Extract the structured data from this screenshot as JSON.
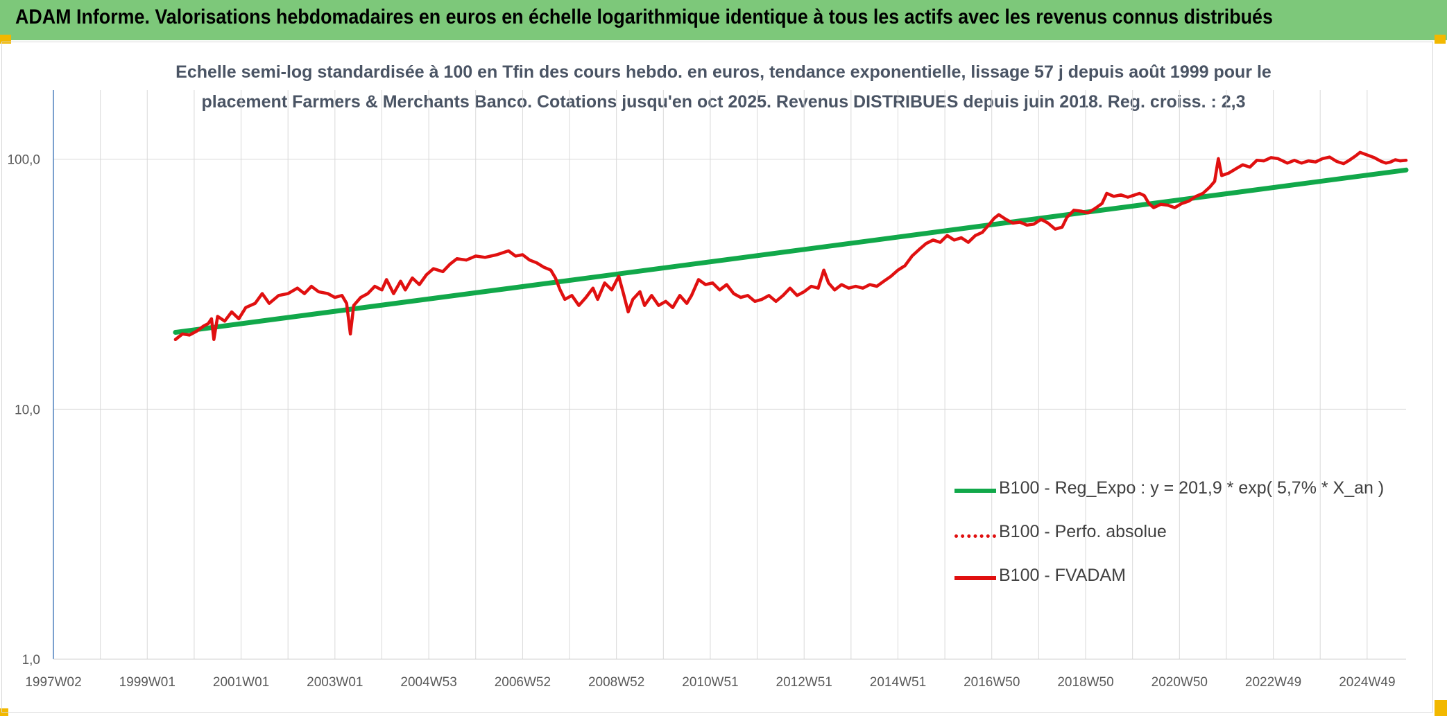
{
  "header": {
    "title": "ADAM Informe. Valorisations hebdomadaires en euros en échelle logarithmique identique à tous les actifs avec les revenus connus distribués"
  },
  "chart_data": {
    "type": "line",
    "title_lines": [
      "Echelle semi-log standardisée à 100 en Tfin des cours hebdo. en euros, tendance exponentielle, lissage 57 j depuis août 1999 pour le",
      "placement Farmers & Merchants Banco. Cotations jusqu'en oct 2025. Revenus DISTRIBUES depuis juin 2018. Reg. croiss. : 2,3"
    ],
    "y_scale": "log",
    "y_range": [
      1,
      189
    ],
    "y_ticks": [
      {
        "value": 1,
        "label": "1,0"
      },
      {
        "value": 10,
        "label": "10,0"
      },
      {
        "value": 100,
        "label": "100,0"
      }
    ],
    "x_range": [
      1997.0,
      2025.83
    ],
    "x_ticks": [
      {
        "value": 1997.0,
        "label": "1997W02"
      },
      {
        "value": 1999.0,
        "label": "1999W01"
      },
      {
        "value": 2001.0,
        "label": "2001W01"
      },
      {
        "value": 2003.0,
        "label": "2003W01"
      },
      {
        "value": 2005.0,
        "label": "2004W53"
      },
      {
        "value": 2007.0,
        "label": "2006W52"
      },
      {
        "value": 2009.0,
        "label": "2008W52"
      },
      {
        "value": 2011.0,
        "label": "2010W51"
      },
      {
        "value": 2013.0,
        "label": "2012W51"
      },
      {
        "value": 2015.0,
        "label": "2014W51"
      },
      {
        "value": 2017.0,
        "label": "2016W50"
      },
      {
        "value": 2019.0,
        "label": "2018W50"
      },
      {
        "value": 2021.0,
        "label": "2020W50"
      },
      {
        "value": 2023.0,
        "label": "2022W49"
      },
      {
        "value": 2025.0,
        "label": "2024W49"
      }
    ],
    "grid": true,
    "legend_position": "bottom-right",
    "series": [
      {
        "name": "B100 - Reg_Expo : y = 201,9 * exp( 5,7% *  X_an )",
        "color": "#11a84a",
        "style": "solid",
        "points": [
          [
            1999.6,
            20.3
          ],
          [
            2025.83,
            90.5
          ]
        ]
      },
      {
        "name": "B100 - Perfo. absolue",
        "color": "#e01010",
        "style": "dotted",
        "points": []
      },
      {
        "name": "B100 - FVADAM",
        "color": "#e01010",
        "style": "solid",
        "points": [
          [
            1999.6,
            19.0
          ],
          [
            1999.75,
            20.0
          ],
          [
            1999.9,
            19.8
          ],
          [
            2000.05,
            20.5
          ],
          [
            2000.2,
            21.5
          ],
          [
            2000.3,
            22.0
          ],
          [
            2000.37,
            23.0
          ],
          [
            2000.42,
            19.0
          ],
          [
            2000.5,
            23.5
          ],
          [
            2000.65,
            22.5
          ],
          [
            2000.8,
            24.5
          ],
          [
            2000.95,
            23.0
          ],
          [
            2001.1,
            25.5
          ],
          [
            2001.3,
            26.5
          ],
          [
            2001.45,
            29.0
          ],
          [
            2001.6,
            26.5
          ],
          [
            2001.8,
            28.5
          ],
          [
            2002.0,
            29.0
          ],
          [
            2002.2,
            30.5
          ],
          [
            2002.35,
            29.0
          ],
          [
            2002.5,
            31.0
          ],
          [
            2002.65,
            29.5
          ],
          [
            2002.85,
            29.0
          ],
          [
            2003.0,
            28.0
          ],
          [
            2003.15,
            28.5
          ],
          [
            2003.25,
            26.5
          ],
          [
            2003.33,
            20.0
          ],
          [
            2003.4,
            26.0
          ],
          [
            2003.55,
            28.0
          ],
          [
            2003.7,
            29.0
          ],
          [
            2003.85,
            31.0
          ],
          [
            2004.0,
            30.0
          ],
          [
            2004.1,
            33.0
          ],
          [
            2004.25,
            29.0
          ],
          [
            2004.4,
            32.5
          ],
          [
            2004.5,
            30.0
          ],
          [
            2004.65,
            33.5
          ],
          [
            2004.8,
            31.5
          ],
          [
            2004.95,
            34.5
          ],
          [
            2005.1,
            36.5
          ],
          [
            2005.3,
            35.5
          ],
          [
            2005.45,
            38.0
          ],
          [
            2005.6,
            40.0
          ],
          [
            2005.8,
            39.5
          ],
          [
            2006.0,
            41.0
          ],
          [
            2006.2,
            40.5
          ],
          [
            2006.45,
            41.5
          ],
          [
            2006.7,
            43.0
          ],
          [
            2006.85,
            41.0
          ],
          [
            2007.0,
            41.5
          ],
          [
            2007.15,
            39.5
          ],
          [
            2007.3,
            38.5
          ],
          [
            2007.45,
            37.0
          ],
          [
            2007.6,
            36.0
          ],
          [
            2007.7,
            33.5
          ],
          [
            2007.8,
            30.0
          ],
          [
            2007.9,
            27.5
          ],
          [
            2008.05,
            28.5
          ],
          [
            2008.2,
            26.0
          ],
          [
            2008.35,
            28.0
          ],
          [
            2008.5,
            30.5
          ],
          [
            2008.6,
            27.5
          ],
          [
            2008.75,
            32.0
          ],
          [
            2008.9,
            30.0
          ],
          [
            2009.05,
            34.0
          ],
          [
            2009.15,
            29.0
          ],
          [
            2009.25,
            24.5
          ],
          [
            2009.35,
            27.5
          ],
          [
            2009.5,
            29.5
          ],
          [
            2009.6,
            26.0
          ],
          [
            2009.75,
            28.5
          ],
          [
            2009.9,
            26.0
          ],
          [
            2010.05,
            27.0
          ],
          [
            2010.2,
            25.5
          ],
          [
            2010.35,
            28.5
          ],
          [
            2010.5,
            26.5
          ],
          [
            2010.6,
            28.5
          ],
          [
            2010.75,
            33.0
          ],
          [
            2010.9,
            31.5
          ],
          [
            2011.05,
            32.0
          ],
          [
            2011.2,
            30.0
          ],
          [
            2011.35,
            31.5
          ],
          [
            2011.5,
            29.0
          ],
          [
            2011.65,
            28.0
          ],
          [
            2011.8,
            28.5
          ],
          [
            2011.95,
            27.0
          ],
          [
            2012.1,
            27.5
          ],
          [
            2012.25,
            28.5
          ],
          [
            2012.4,
            27.0
          ],
          [
            2012.55,
            28.5
          ],
          [
            2012.7,
            30.5
          ],
          [
            2012.85,
            28.5
          ],
          [
            2013.0,
            29.5
          ],
          [
            2013.15,
            31.0
          ],
          [
            2013.3,
            30.5
          ],
          [
            2013.42,
            36.0
          ],
          [
            2013.52,
            32.0
          ],
          [
            2013.65,
            30.0
          ],
          [
            2013.8,
            31.5
          ],
          [
            2013.95,
            30.5
          ],
          [
            2014.1,
            31.0
          ],
          [
            2014.25,
            30.5
          ],
          [
            2014.4,
            31.5
          ],
          [
            2014.55,
            31.0
          ],
          [
            2014.7,
            32.5
          ],
          [
            2014.85,
            34.0
          ],
          [
            2015.0,
            36.0
          ],
          [
            2015.15,
            37.5
          ],
          [
            2015.3,
            41.0
          ],
          [
            2015.45,
            43.5
          ],
          [
            2015.6,
            46.0
          ],
          [
            2015.75,
            47.5
          ],
          [
            2015.9,
            46.5
          ],
          [
            2016.05,
            49.5
          ],
          [
            2016.2,
            47.5
          ],
          [
            2016.35,
            48.5
          ],
          [
            2016.5,
            46.5
          ],
          [
            2016.65,
            49.5
          ],
          [
            2016.8,
            51.0
          ],
          [
            2016.95,
            55.0
          ],
          [
            2017.05,
            58.0
          ],
          [
            2017.15,
            60.0
          ],
          [
            2017.3,
            57.5
          ],
          [
            2017.45,
            55.5
          ],
          [
            2017.6,
            56.0
          ],
          [
            2017.75,
            54.5
          ],
          [
            2017.9,
            55.0
          ],
          [
            2018.05,
            57.5
          ],
          [
            2018.2,
            55.5
          ],
          [
            2018.35,
            52.5
          ],
          [
            2018.5,
            53.5
          ],
          [
            2018.6,
            58.5
          ],
          [
            2018.75,
            62.5
          ],
          [
            2018.9,
            62.0
          ],
          [
            2019.05,
            61.0
          ],
          [
            2019.2,
            63.5
          ],
          [
            2019.35,
            66.5
          ],
          [
            2019.45,
            73.0
          ],
          [
            2019.6,
            71.0
          ],
          [
            2019.75,
            72.0
          ],
          [
            2019.9,
            70.5
          ],
          [
            2020.05,
            72.0
          ],
          [
            2020.15,
            73.0
          ],
          [
            2020.25,
            71.5
          ],
          [
            2020.35,
            66.5
          ],
          [
            2020.45,
            64.0
          ],
          [
            2020.6,
            66.0
          ],
          [
            2020.75,
            65.5
          ],
          [
            2020.9,
            64.0
          ],
          [
            2021.05,
            66.5
          ],
          [
            2021.2,
            68.0
          ],
          [
            2021.35,
            71.0
          ],
          [
            2021.5,
            73.0
          ],
          [
            2021.65,
            77.5
          ],
          [
            2021.75,
            81.5
          ],
          [
            2021.83,
            100.5
          ],
          [
            2021.9,
            86.0
          ],
          [
            2022.05,
            88.0
          ],
          [
            2022.2,
            91.5
          ],
          [
            2022.35,
            95.0
          ],
          [
            2022.5,
            93.0
          ],
          [
            2022.65,
            99.0
          ],
          [
            2022.8,
            98.5
          ],
          [
            2022.95,
            101.5
          ],
          [
            2023.1,
            100.5
          ],
          [
            2023.3,
            96.5
          ],
          [
            2023.45,
            99.0
          ],
          [
            2023.6,
            96.5
          ],
          [
            2023.75,
            98.5
          ],
          [
            2023.9,
            97.5
          ],
          [
            2024.05,
            100.5
          ],
          [
            2024.2,
            102.0
          ],
          [
            2024.35,
            98.0
          ],
          [
            2024.5,
            96.0
          ],
          [
            2024.6,
            98.5
          ],
          [
            2024.75,
            103.0
          ],
          [
            2024.85,
            106.5
          ],
          [
            2025.0,
            104.0
          ],
          [
            2025.15,
            101.5
          ],
          [
            2025.3,
            98.0
          ],
          [
            2025.4,
            96.5
          ],
          [
            2025.5,
            97.5
          ],
          [
            2025.6,
            99.5
          ],
          [
            2025.7,
            98.5
          ],
          [
            2025.83,
            99.0
          ]
        ]
      }
    ]
  }
}
